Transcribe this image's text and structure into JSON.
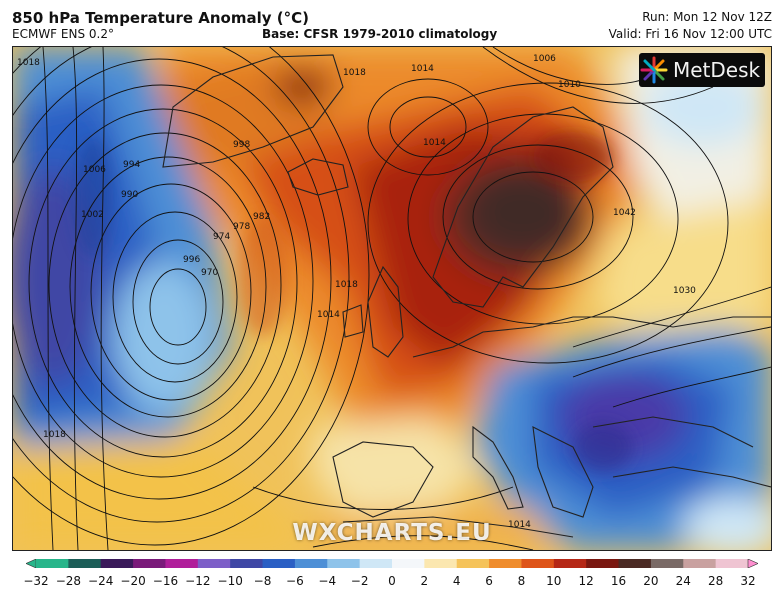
{
  "header": {
    "title": "850 hPa Temperature Anomaly (°C)",
    "model": "ECMWF ENS 0.2°",
    "base": "Base: CFSR 1979-2010 climatology",
    "run": "Run: Mon 12 Nov 12Z",
    "valid": "Valid: Fri 16 Nov 12:00 UTC"
  },
  "logo": {
    "text": "MetDesk"
  },
  "watermark": "WXCHARTS.EU",
  "isobar_labels": [
    "1018",
    "1014",
    "1010",
    "1006",
    "998",
    "994",
    "990",
    "1006",
    "1002",
    "1014",
    "1018",
    "996",
    "970",
    "974",
    "978",
    "982",
    "1018",
    "1014",
    "1042",
    "1030",
    "1018",
    "1014"
  ],
  "colorbar": {
    "ticks": [
      "−32",
      "−28",
      "−24",
      "−20",
      "−16",
      "−12",
      "−10",
      "−8",
      "−6",
      "−4",
      "−2",
      "0",
      "2",
      "4",
      "6",
      "8",
      "10",
      "12",
      "16",
      "20",
      "24",
      "28",
      "32"
    ],
    "colors": [
      "#27b58a",
      "#1c5e58",
      "#3a1a5a",
      "#7a1a7a",
      "#b01e9a",
      "#7d5fc8",
      "#3f47a5",
      "#2a5fc4",
      "#4d8fd6",
      "#8ec3ea",
      "#cfe7f6",
      "#f4f7fa",
      "#fbe7b0",
      "#f5c35a",
      "#ef8c2c",
      "#de5419",
      "#b52716",
      "#7a1710",
      "#4b2a24",
      "#7a6a66",
      "#c9a1a0",
      "#efc4d2",
      "#ff8fd0"
    ]
  }
}
